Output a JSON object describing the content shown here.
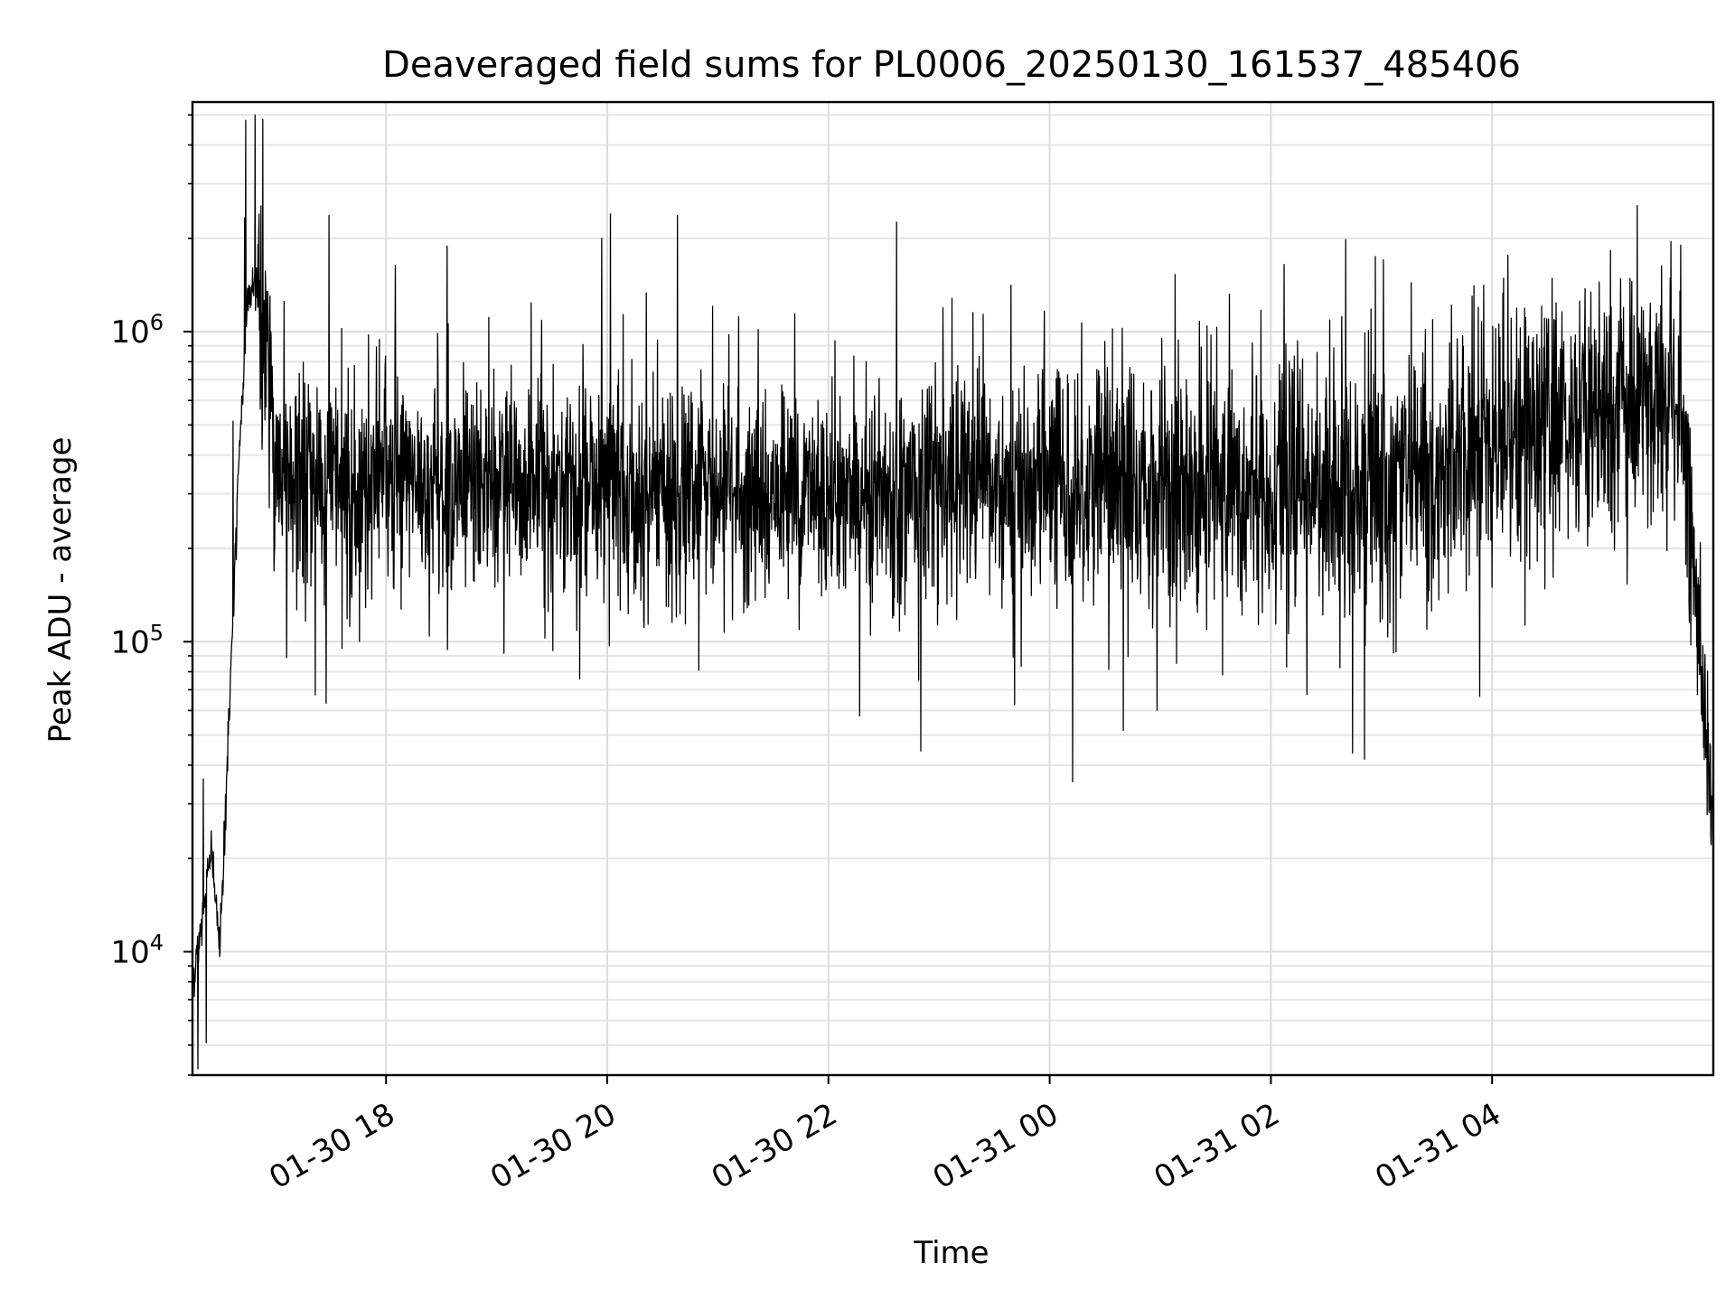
{
  "chart_data": {
    "type": "line",
    "title": "Deaveraged field sums for PL0006_20250130_161537_485406",
    "xlabel": "Time",
    "ylabel": "Peak ADU - average",
    "yscale": "log",
    "xlim": [
      "2025-01-30 16:15",
      "2025-01-31 06:00"
    ],
    "ylim": [
      4000,
      5500000
    ],
    "x_ticks": [
      {
        "value": "2025-01-30 18:00",
        "label": "01-30 18"
      },
      {
        "value": "2025-01-30 20:00",
        "label": "01-30 20"
      },
      {
        "value": "2025-01-30 22:00",
        "label": "01-30 22"
      },
      {
        "value": "2025-01-31 00:00",
        "label": "01-31 00"
      },
      {
        "value": "2025-01-31 02:00",
        "label": "01-31 02"
      },
      {
        "value": "2025-01-31 04:00",
        "label": "01-31 04"
      }
    ],
    "y_ticks": [
      {
        "value": 10000,
        "base": "10",
        "exp": "4"
      },
      {
        "value": 100000,
        "base": "10",
        "exp": "5"
      },
      {
        "value": 1000000,
        "base": "10",
        "exp": "6"
      }
    ],
    "grid": true,
    "line_color": "#000000",
    "series": [
      {
        "x": [
          "2025-01-30 16:15",
          "2025-01-30 16:20",
          "2025-01-30 16:25",
          "2025-01-30 16:30",
          "2025-01-30 16:35",
          "2025-01-30 16:40",
          "2025-01-30 16:45",
          "2025-01-30 16:50",
          "2025-01-30 16:55",
          "2025-01-30 17:00",
          "2025-01-30 17:10",
          "2025-01-30 17:20",
          "2025-01-30 17:30",
          "2025-01-30 17:40",
          "2025-01-30 17:50",
          "2025-01-30 18:00",
          "2025-01-30 18:15",
          "2025-01-30 18:30",
          "2025-01-30 18:45",
          "2025-01-30 19:00",
          "2025-01-30 19:15",
          "2025-01-30 19:30",
          "2025-01-30 19:45",
          "2025-01-30 20:00",
          "2025-01-30 20:30",
          "2025-01-30 21:00",
          "2025-01-30 21:30",
          "2025-01-30 22:00",
          "2025-01-30 22:30",
          "2025-01-30 23:00",
          "2025-01-30 23:30",
          "2025-01-31 00:00",
          "2025-01-31 00:30",
          "2025-01-31 01:00",
          "2025-01-31 01:30",
          "2025-01-31 02:00",
          "2025-01-31 02:30",
          "2025-01-31 03:00",
          "2025-01-31 03:30",
          "2025-01-31 04:00",
          "2025-01-31 04:30",
          "2025-01-31 05:00",
          "2025-01-31 05:30",
          "2025-01-31 05:45",
          "2025-01-31 05:50",
          "2025-01-31 05:55",
          "2025-01-31 06:00"
        ],
        "values": [
          8000,
          12000,
          22000,
          10000,
          60000,
          350000,
          1300000,
          1500000,
          900000,
          380000,
          330000,
          310000,
          320000,
          300000,
          310000,
          320000,
          330000,
          310000,
          320000,
          330000,
          310000,
          320000,
          330000,
          310000,
          300000,
          290000,
          300000,
          310000,
          300000,
          320000,
          310000,
          320000,
          330000,
          320000,
          310000,
          330000,
          300000,
          320000,
          360000,
          470000,
          520000,
          560000,
          620000,
          500000,
          150000,
          60000,
          30000
        ]
      }
    ]
  }
}
